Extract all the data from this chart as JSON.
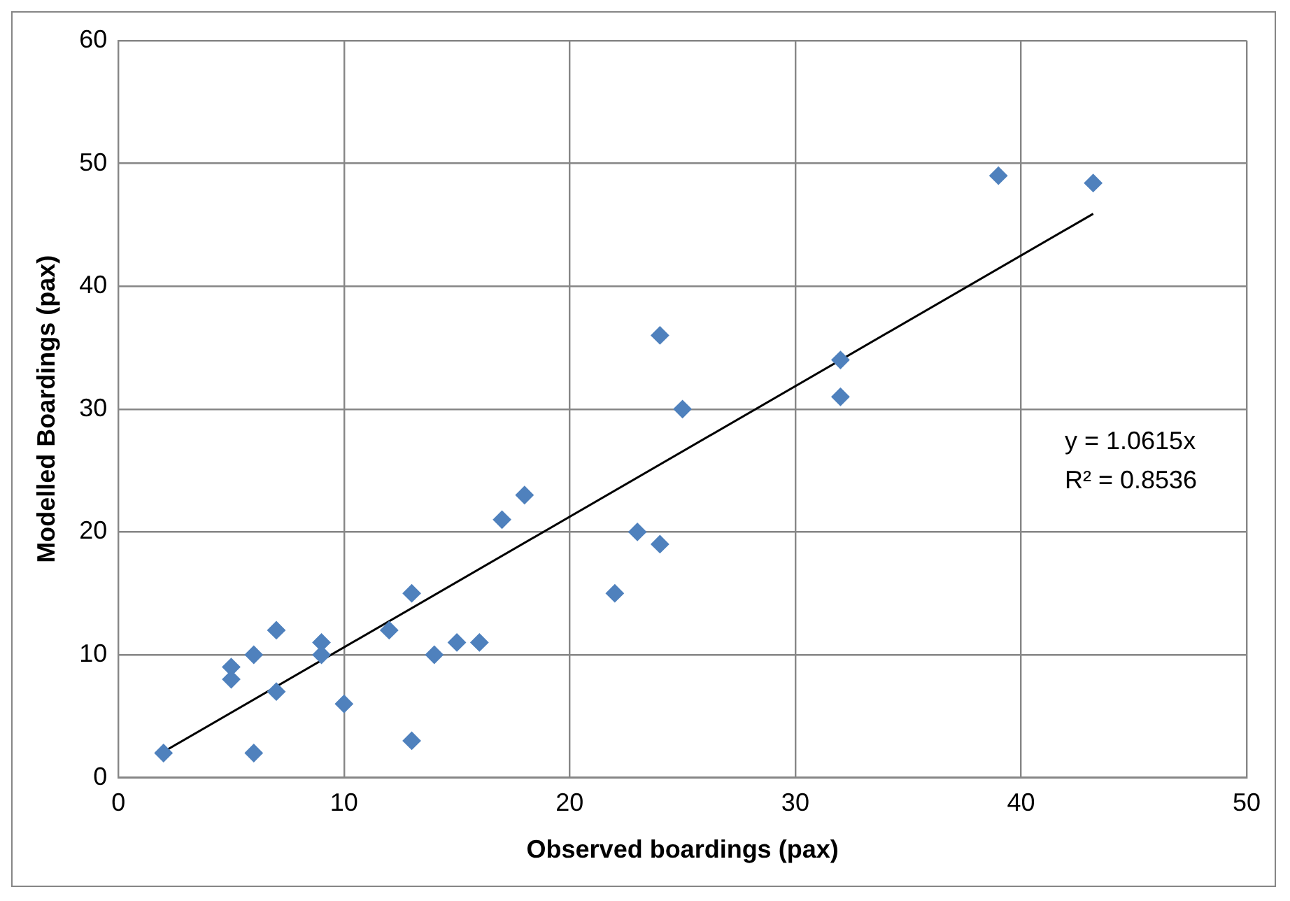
{
  "chart_data": {
    "type": "scatter",
    "xlabel": "Observed boardings (pax)",
    "ylabel": "Modelled Boardings (pax)",
    "xlim": [
      0,
      50
    ],
    "ylim": [
      0,
      60
    ],
    "xticks": [
      0,
      10,
      20,
      30,
      40,
      50
    ],
    "yticks": [
      0,
      10,
      20,
      30,
      40,
      50,
      60
    ],
    "grid": true,
    "legend": false,
    "marker": "diamond",
    "series": [
      {
        "color": "#4f81bd",
        "x": [
          2,
          5,
          5,
          6,
          6,
          7,
          7,
          9,
          9,
          10,
          12,
          13,
          13,
          14,
          15,
          16,
          17,
          18,
          22,
          23,
          24,
          24,
          25,
          32,
          32,
          39,
          43.2
        ],
        "values": [
          2,
          9,
          8,
          10,
          2,
          12,
          7,
          11,
          10,
          6,
          12,
          15,
          3,
          10,
          11,
          11,
          21,
          23,
          15,
          20,
          36,
          19,
          30,
          34,
          31,
          49,
          48.4
        ]
      },
      {
        "type": "line",
        "color": "#000000",
        "marker": "none",
        "x": [
          2,
          43.2
        ],
        "values": [
          2.1,
          45.9
        ]
      }
    ],
    "annotations": [
      "y = 1.0615x",
      "R² = 0.8536"
    ]
  }
}
